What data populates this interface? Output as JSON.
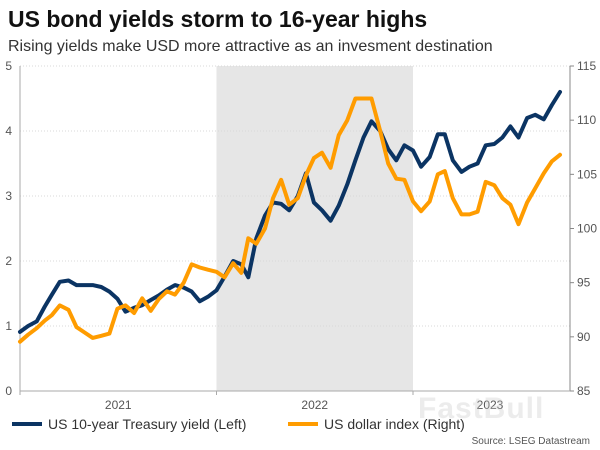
{
  "chart_data": {
    "type": "line",
    "title": "US bond yields storm to 16-year highs",
    "subtitle": "Rising yields make USD more attractive as an invesment destination",
    "source": "Source: LSEG Datastream",
    "watermark": "FastBull",
    "x_tick_labels": [
      "2021",
      "2022",
      "2023"
    ],
    "shaded_period": [
      "2022-01-01",
      "2023-01-01"
    ],
    "y_left": {
      "lim": [
        0,
        5
      ],
      "ticks": [
        "0",
        "1",
        "2",
        "3",
        "4",
        "5"
      ]
    },
    "y_right": {
      "lim": [
        85,
        115
      ],
      "ticks": [
        "85",
        "90",
        "95",
        "100",
        "105",
        "110",
        "115"
      ]
    },
    "grid": "horizontal",
    "legend_position": "bottom",
    "x": [
      "2021-01-01",
      "2021-01-16",
      "2021-02-01",
      "2021-02-16",
      "2021-03-01",
      "2021-03-16",
      "2021-04-01",
      "2021-04-16",
      "2021-05-01",
      "2021-05-16",
      "2021-06-01",
      "2021-06-16",
      "2021-07-01",
      "2021-07-16",
      "2021-08-01",
      "2021-08-16",
      "2021-09-01",
      "2021-09-16",
      "2021-10-01",
      "2021-10-16",
      "2021-11-01",
      "2021-11-16",
      "2021-12-01",
      "2021-12-16",
      "2022-01-01",
      "2022-01-16",
      "2022-02-01",
      "2022-02-16",
      "2022-03-01",
      "2022-03-16",
      "2022-04-01",
      "2022-04-16",
      "2022-05-01",
      "2022-05-16",
      "2022-06-01",
      "2022-06-16",
      "2022-07-01",
      "2022-07-16",
      "2022-08-01",
      "2022-08-16",
      "2022-09-01",
      "2022-09-16",
      "2022-10-01",
      "2022-10-16",
      "2022-11-01",
      "2022-11-16",
      "2022-12-01",
      "2022-12-16",
      "2023-01-01",
      "2023-01-16",
      "2023-02-01",
      "2023-02-16",
      "2023-03-01",
      "2023-03-16",
      "2023-04-01",
      "2023-04-16",
      "2023-05-01",
      "2023-05-16",
      "2023-06-01",
      "2023-06-16",
      "2023-07-01",
      "2023-07-16",
      "2023-08-01",
      "2023-08-16",
      "2023-09-01",
      "2023-09-16",
      "2023-10-01"
    ],
    "series": [
      {
        "name": "US 10-year Treasury yield (Left)",
        "axis": "left",
        "color": "#0b3463",
        "values": [
          0.91,
          1.0,
          1.07,
          1.3,
          1.48,
          1.68,
          1.7,
          1.63,
          1.63,
          1.63,
          1.6,
          1.53,
          1.42,
          1.22,
          1.28,
          1.32,
          1.4,
          1.47,
          1.56,
          1.63,
          1.59,
          1.53,
          1.38,
          1.45,
          1.55,
          1.76,
          2.0,
          1.95,
          1.75,
          2.35,
          2.7,
          2.9,
          2.88,
          2.78,
          3.0,
          3.35,
          2.9,
          2.78,
          2.62,
          2.85,
          3.18,
          3.55,
          3.9,
          4.15,
          4.0,
          3.72,
          3.55,
          3.78,
          3.7,
          3.45,
          3.6,
          3.95,
          3.95,
          3.55,
          3.37,
          3.45,
          3.5,
          3.78,
          3.8,
          3.9,
          4.07,
          3.9,
          4.2,
          4.25,
          4.18,
          4.4,
          4.6
        ]
      },
      {
        "name": "US dollar index (Right)",
        "axis": "right",
        "color": "#ff9c00",
        "values": [
          89.55,
          90.2,
          90.8,
          91.5,
          92.0,
          92.9,
          92.5,
          90.9,
          90.4,
          89.9,
          90.1,
          90.3,
          92.6,
          92.9,
          92.2,
          93.55,
          92.4,
          93.5,
          94.2,
          93.9,
          95.0,
          96.7,
          96.4,
          96.2,
          96.0,
          95.5,
          96.8,
          95.9,
          99.1,
          98.6,
          100.0,
          102.8,
          104.5,
          102.2,
          102.8,
          104.9,
          106.5,
          107.0,
          105.6,
          108.6,
          110.0,
          112.0,
          112.0,
          112.0,
          109.0,
          106.0,
          104.6,
          104.5,
          102.5,
          101.6,
          102.5,
          105.0,
          105.3,
          102.8,
          101.3,
          101.3,
          101.55,
          104.3,
          104.0,
          102.8,
          102.2,
          100.4,
          102.4,
          103.7,
          105.1,
          106.2,
          106.8
        ]
      }
    ]
  }
}
